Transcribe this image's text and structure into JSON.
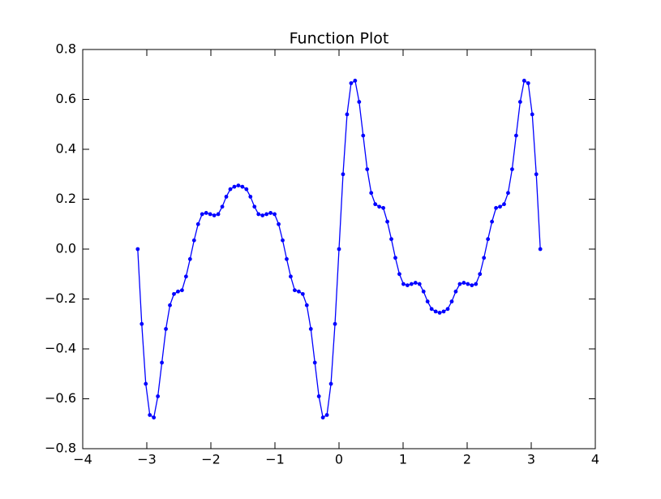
{
  "chart_data": {
    "type": "line",
    "title": "Function Plot",
    "x": [
      -3.1416,
      -3.0788,
      -3.0159,
      -2.9531,
      -2.8903,
      -2.8274,
      -2.7646,
      -2.7018,
      -2.6389,
      -2.5761,
      -2.5133,
      -2.4504,
      -2.3876,
      -2.3248,
      -2.2619,
      -2.1991,
      -2.1363,
      -2.0735,
      -2.0106,
      -1.9478,
      -1.885,
      -1.8221,
      -1.7593,
      -1.6965,
      -1.6336,
      -1.5708,
      -1.508,
      -1.4451,
      -1.3823,
      -1.3195,
      -1.2566,
      -1.1938,
      -1.131,
      -1.0681,
      -1.0053,
      -0.9425,
      -0.8796,
      -0.8168,
      -0.754,
      -0.6912,
      -0.6283,
      -0.5655,
      -0.5027,
      -0.4398,
      -0.377,
      -0.3142,
      -0.2513,
      -0.1885,
      -0.1257,
      -0.0628,
      0,
      0.0628,
      0.1257,
      0.1885,
      0.2513,
      0.3142,
      0.377,
      0.4398,
      0.5027,
      0.5655,
      0.6283,
      0.6912,
      0.754,
      0.8168,
      0.8796,
      0.9425,
      1.0053,
      1.0681,
      1.131,
      1.1938,
      1.2566,
      1.3195,
      1.3823,
      1.4451,
      1.508,
      1.5708,
      1.6336,
      1.6965,
      1.7593,
      1.8221,
      1.885,
      1.9478,
      2.0106,
      2.0735,
      2.1363,
      2.1991,
      2.2619,
      2.3248,
      2.3876,
      2.4504,
      2.5133,
      2.5761,
      2.6389,
      2.7018,
      2.7646,
      2.8274,
      2.8903,
      2.9531,
      3.0159,
      3.0788,
      3.1416
    ],
    "series": [
      {
        "color": "#0000ff",
        "values": [
          0,
          -0.3,
          -0.54,
          -0.665,
          -0.675,
          -0.59,
          -0.455,
          -0.32,
          -0.225,
          -0.18,
          -0.17,
          -0.165,
          -0.11,
          -0.04,
          0.035,
          0.1,
          0.14,
          0.145,
          0.14,
          0.135,
          0.14,
          0.17,
          0.21,
          0.24,
          0.25,
          0.255,
          0.25,
          0.24,
          0.21,
          0.17,
          0.14,
          0.135,
          0.14,
          0.145,
          0.14,
          0.1,
          0.035,
          -0.04,
          -0.11,
          -0.165,
          -0.17,
          -0.18,
          -0.225,
          -0.32,
          -0.455,
          -0.59,
          -0.675,
          -0.665,
          -0.54,
          -0.3,
          0,
          0.3,
          0.54,
          0.665,
          0.675,
          0.59,
          0.455,
          0.32,
          0.225,
          0.18,
          0.17,
          0.165,
          0.11,
          0.04,
          -0.035,
          -0.1,
          -0.14,
          -0.145,
          -0.14,
          -0.135,
          -0.14,
          -0.17,
          -0.21,
          -0.24,
          -0.25,
          -0.255,
          -0.25,
          -0.24,
          -0.21,
          -0.17,
          -0.14,
          -0.135,
          -0.14,
          -0.145,
          -0.14,
          -0.1,
          -0.035,
          0.04,
          0.11,
          0.165,
          0.17,
          0.18,
          0.225,
          0.32,
          0.455,
          0.59,
          0.675,
          0.665,
          0.54,
          0.3,
          0
        ]
      }
    ],
    "xlim": [
      -4,
      4
    ],
    "xticks": [
      {
        "value": -4,
        "label": "−4"
      },
      {
        "value": -3,
        "label": "−3"
      },
      {
        "value": -2,
        "label": "−2"
      },
      {
        "value": -1,
        "label": "−1"
      },
      0,
      1,
      2,
      3,
      4
    ],
    "ylim": [
      -0.8,
      0.8
    ],
    "yticks": [
      {
        "value": -0.8,
        "label": "−0.8"
      },
      {
        "value": -0.6,
        "label": "−0.6"
      },
      {
        "value": -0.4,
        "label": "−0.4"
      },
      {
        "value": -0.2,
        "label": "−0.2"
      },
      {
        "value": 0,
        "label": "0.0"
      },
      0.2,
      0.4,
      0.6,
      0.8
    ],
    "grid": false,
    "markers": true
  }
}
